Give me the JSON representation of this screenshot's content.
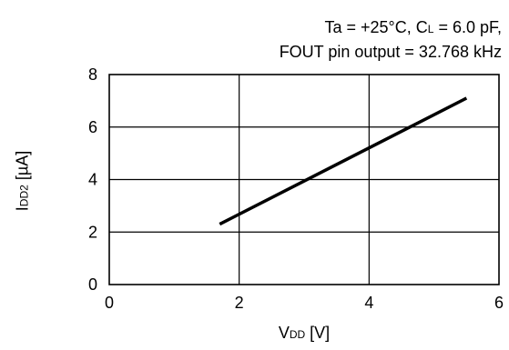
{
  "chart_data": {
    "type": "line",
    "title_lines": [
      {
        "parts": [
          {
            "text": "Ta = +25°C, C"
          },
          {
            "text": "L",
            "sub": true
          },
          {
            "text": " = 6.0 pF,"
          }
        ]
      },
      {
        "parts": [
          {
            "text": "FOUT pin output = 32.768 kHz"
          }
        ]
      }
    ],
    "xlabel": {
      "parts": [
        {
          "text": "V"
        },
        {
          "text": "DD",
          "sub": true
        },
        {
          "text": " [V]"
        }
      ]
    },
    "ylabel": {
      "parts": [
        {
          "text": "I"
        },
        {
          "text": "DD2",
          "sub": true
        },
        {
          "text": " [µA]"
        }
      ]
    },
    "xlim": [
      0,
      6
    ],
    "ylim": [
      0,
      8
    ],
    "xticks": [
      0,
      2,
      4,
      6
    ],
    "yticks": [
      0,
      2,
      4,
      6,
      8
    ],
    "grid": true,
    "series": [
      {
        "x": [
          1.7,
          5.5
        ],
        "y": [
          2.3,
          7.1
        ]
      }
    ],
    "colors": {
      "line": "#000000",
      "grid": "#000000",
      "background": "#ffffff"
    }
  }
}
